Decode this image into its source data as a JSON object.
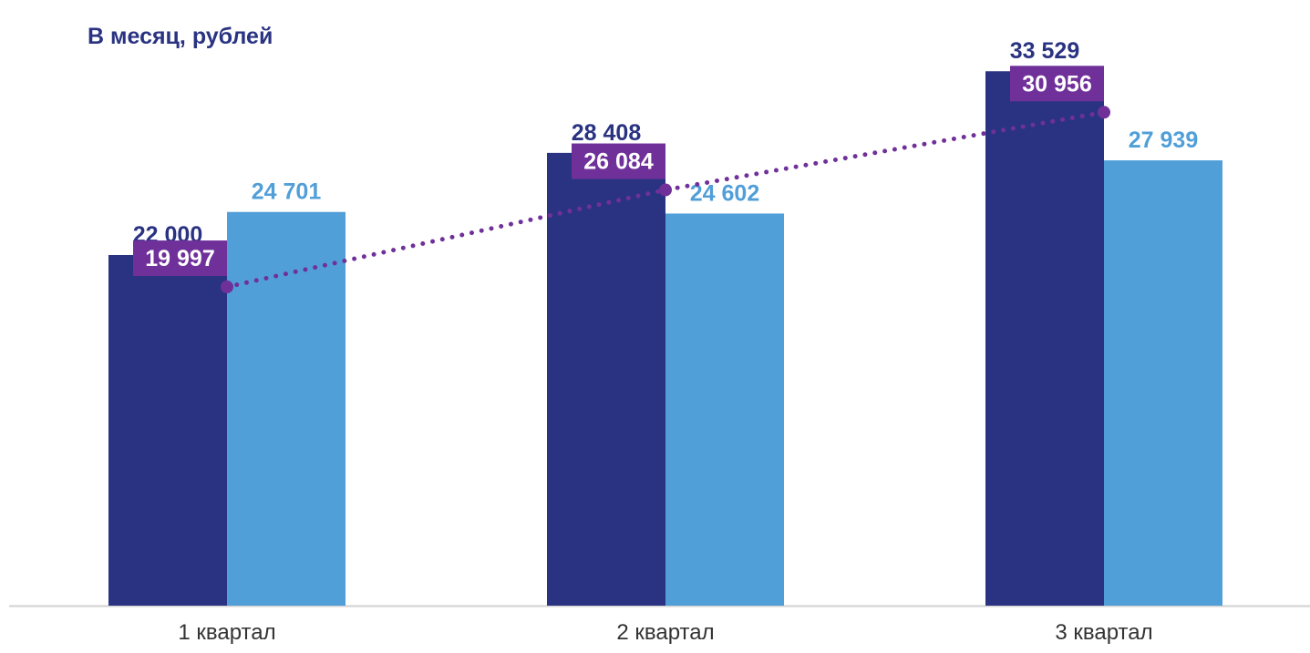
{
  "chart_data": {
    "type": "bar",
    "title": "В месяц, рублей",
    "categories": [
      "1 квартал",
      "2 квартал",
      "3 квартал"
    ],
    "series": [
      {
        "type": "bar",
        "color": "#2a3382",
        "values": [
          22000,
          28408,
          33529
        ],
        "labels": [
          "22 000",
          "28 408",
          "33 529"
        ]
      },
      {
        "type": "bar",
        "color": "#519fd8",
        "values": [
          24701,
          24602,
          27939
        ],
        "labels": [
          "24 701",
          "24 602",
          "27 939"
        ]
      },
      {
        "type": "line",
        "style": "dotted",
        "color": "#70309a",
        "values": [
          19997,
          26084,
          30956
        ],
        "labels": [
          "19 997",
          "26 084",
          "30 956"
        ]
      }
    ],
    "ylim": [
      0,
      38000
    ],
    "grid": false,
    "legend": "none"
  }
}
